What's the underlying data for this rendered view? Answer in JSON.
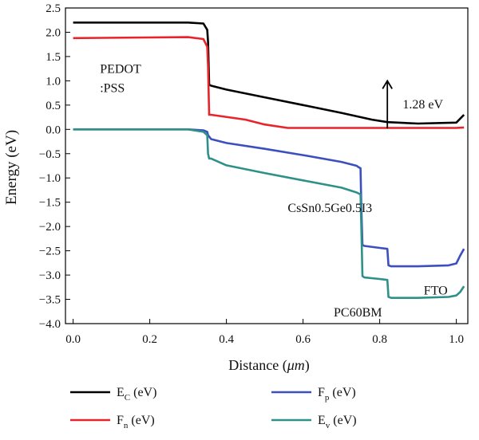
{
  "chart_data": {
    "type": "line",
    "xlabel_prefix": "Distance (",
    "xlabel_unit": "μm",
    "xlabel_suffix": ")",
    "ylabel": "Energy (eV)",
    "xlim": [
      -0.02,
      1.03
    ],
    "ylim": [
      -4.0,
      2.5
    ],
    "xticks": [
      0.0,
      0.2,
      0.4,
      0.6,
      0.8,
      1.0
    ],
    "xtick_labels": [
      "0.0",
      "0.2",
      "0.4",
      "0.6",
      "0.8",
      "1.0"
    ],
    "yticks": [
      2.5,
      2.0,
      1.5,
      1.0,
      0.5,
      0.0,
      -0.5,
      -1.0,
      -1.5,
      -2.0,
      -2.5,
      -3.0,
      -3.5,
      -4.0
    ],
    "ytick_labels": [
      "2.5",
      "2.0",
      "1.5",
      "1.0",
      "0.5",
      "0.0",
      "−0.5",
      "−1.0",
      "−1.5",
      "−2.0",
      "−2.5",
      "−3.0",
      "−3.5",
      "−4.0"
    ],
    "grid": false,
    "legend_position": "bottom",
    "series": [
      {
        "key": "Ec",
        "name": "E",
        "sub": "C",
        "unit": " (eV)",
        "color": "#000000",
        "points": [
          [
            0.0,
            2.2
          ],
          [
            0.3,
            2.2
          ],
          [
            0.34,
            2.18
          ],
          [
            0.35,
            2.05
          ],
          [
            0.352,
            1.8
          ],
          [
            0.355,
            0.92
          ],
          [
            0.36,
            0.9
          ],
          [
            0.4,
            0.82
          ],
          [
            0.5,
            0.66
          ],
          [
            0.6,
            0.5
          ],
          [
            0.7,
            0.34
          ],
          [
            0.78,
            0.2
          ],
          [
            0.82,
            0.15
          ],
          [
            0.9,
            0.12
          ],
          [
            1.0,
            0.14
          ],
          [
            1.01,
            0.22
          ],
          [
            1.02,
            0.3
          ]
        ]
      },
      {
        "key": "Fn",
        "name": "F",
        "sub": "n",
        "unit": " (eV)",
        "color": "#e8242b",
        "points": [
          [
            0.0,
            1.88
          ],
          [
            0.3,
            1.9
          ],
          [
            0.34,
            1.86
          ],
          [
            0.35,
            1.7
          ],
          [
            0.352,
            1.3
          ],
          [
            0.355,
            0.3
          ],
          [
            0.36,
            0.3
          ],
          [
            0.45,
            0.2
          ],
          [
            0.5,
            0.1
          ],
          [
            0.56,
            0.03
          ],
          [
            0.6,
            0.03
          ],
          [
            1.0,
            0.03
          ],
          [
            1.02,
            0.04
          ]
        ]
      },
      {
        "key": "Fp",
        "name": "F",
        "sub": "p",
        "unit": " (eV)",
        "color": "#3c4fbf",
        "points": [
          [
            0.0,
            0.0
          ],
          [
            0.3,
            0.0
          ],
          [
            0.34,
            -0.02
          ],
          [
            0.35,
            -0.05
          ],
          [
            0.352,
            -0.12
          ],
          [
            0.36,
            -0.2
          ],
          [
            0.4,
            -0.28
          ],
          [
            0.5,
            -0.4
          ],
          [
            0.6,
            -0.53
          ],
          [
            0.7,
            -0.67
          ],
          [
            0.74,
            -0.75
          ],
          [
            0.745,
            -0.78
          ],
          [
            0.75,
            -0.8
          ],
          [
            0.752,
            -1.6
          ],
          [
            0.755,
            -2.38
          ],
          [
            0.76,
            -2.4
          ],
          [
            0.8,
            -2.44
          ],
          [
            0.82,
            -2.46
          ],
          [
            0.823,
            -2.8
          ],
          [
            0.83,
            -2.82
          ],
          [
            0.9,
            -2.82
          ],
          [
            0.98,
            -2.8
          ],
          [
            1.0,
            -2.76
          ],
          [
            1.01,
            -2.6
          ],
          [
            1.02,
            -2.46
          ]
        ]
      },
      {
        "key": "Ev",
        "name": "E",
        "sub": "v",
        "unit": " (eV)",
        "color": "#2e9189",
        "points": [
          [
            0.0,
            0.0
          ],
          [
            0.3,
            0.0
          ],
          [
            0.34,
            -0.05
          ],
          [
            0.35,
            -0.12
          ],
          [
            0.352,
            -0.5
          ],
          [
            0.355,
            -0.6
          ],
          [
            0.36,
            -0.6
          ],
          [
            0.4,
            -0.74
          ],
          [
            0.5,
            -0.9
          ],
          [
            0.6,
            -1.05
          ],
          [
            0.7,
            -1.2
          ],
          [
            0.74,
            -1.3
          ],
          [
            0.75,
            -1.34
          ],
          [
            0.752,
            -2.0
          ],
          [
            0.755,
            -3.02
          ],
          [
            0.76,
            -3.05
          ],
          [
            0.8,
            -3.08
          ],
          [
            0.82,
            -3.1
          ],
          [
            0.823,
            -3.45
          ],
          [
            0.83,
            -3.47
          ],
          [
            0.9,
            -3.47
          ],
          [
            0.98,
            -3.45
          ],
          [
            1.0,
            -3.42
          ],
          [
            1.01,
            -3.35
          ],
          [
            1.02,
            -3.23
          ]
        ]
      }
    ],
    "annotations": [
      {
        "key": "pedot1",
        "text": "PEDOT",
        "x": 0.07,
        "y": 1.26
      },
      {
        "key": "pedot2",
        "text": ":PSS",
        "x": 0.07,
        "y": 0.87
      },
      {
        "key": "cs",
        "text": "CsSn0.5Ge0.5I3",
        "x": 0.56,
        "y": -1.6
      },
      {
        "key": "fto",
        "text": "FTO",
        "x": 0.915,
        "y": -3.3
      },
      {
        "key": "pc",
        "text": "PC60BM",
        "x": 0.68,
        "y": -3.75
      },
      {
        "key": "gap",
        "text": "1.28 eV",
        "x": 0.86,
        "y": 0.53
      }
    ],
    "bandgap_arrow": {
      "x": 0.82,
      "y_start": 0.02,
      "y_end": 1.0
    }
  }
}
